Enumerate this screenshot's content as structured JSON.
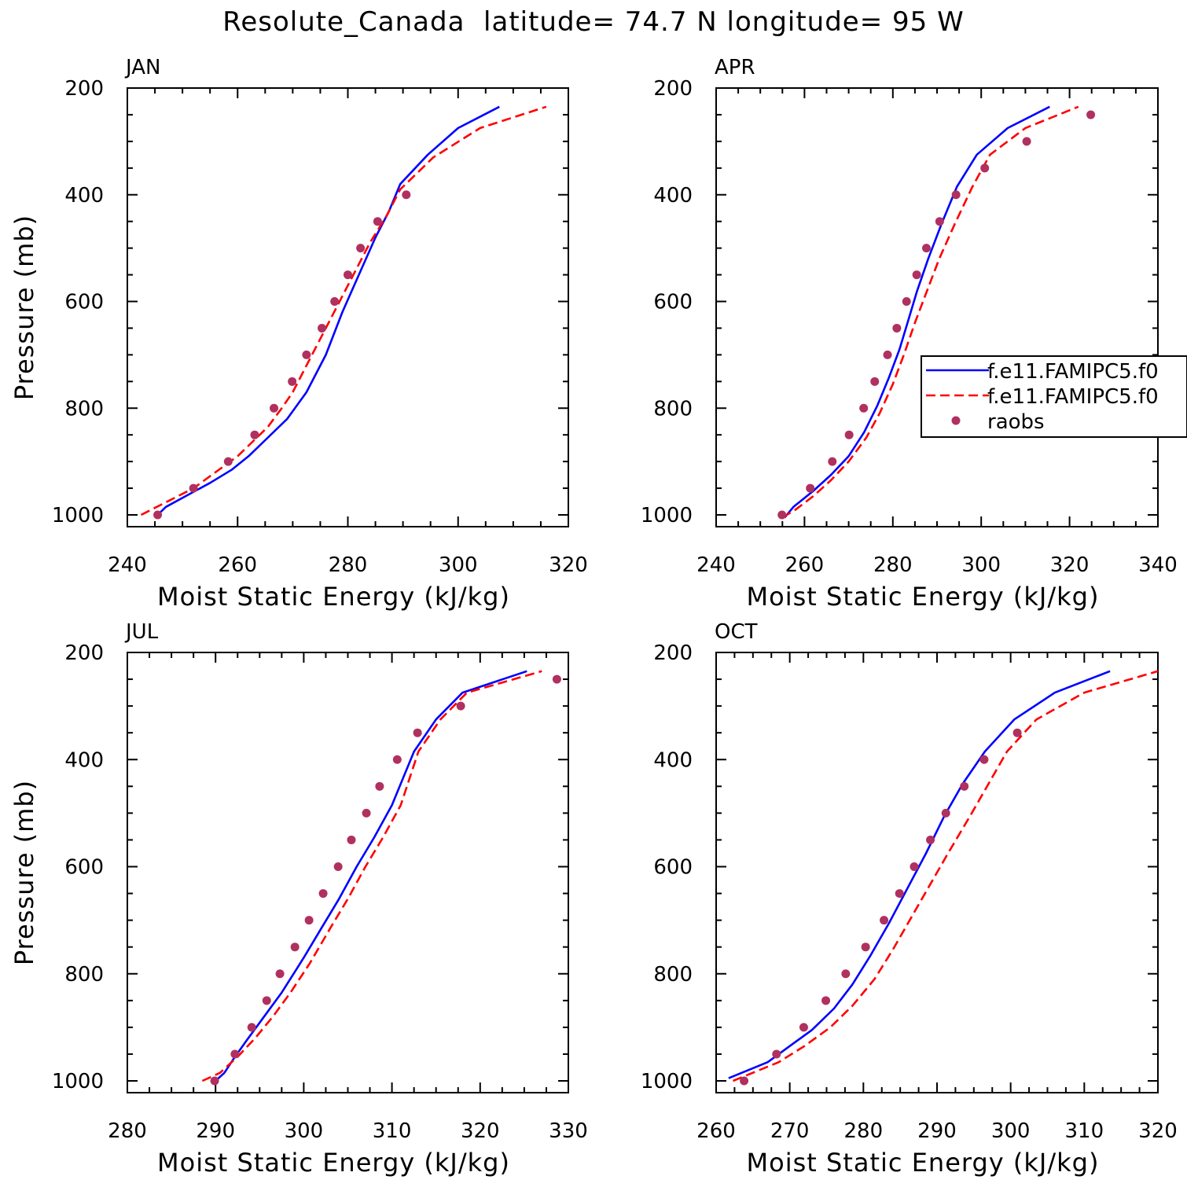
{
  "title": "Resolute_Canada  latitude= 74.7 N longitude= 95 W",
  "colors": {
    "model1": "#0000ff",
    "model2": "#ff0000",
    "raobs": "#b03060",
    "axis": "#000000"
  },
  "legend": {
    "panel": "APR",
    "entries": [
      {
        "label": "f.e11.FAMIPC5.f0",
        "style": "solid",
        "color": "#0000ff"
      },
      {
        "label": "f.e11.FAMIPC5.f0",
        "style": "dashed",
        "color": "#ff0000"
      },
      {
        "label": "raobs",
        "style": "marker",
        "color": "#b03060"
      }
    ]
  },
  "chart_data": [
    {
      "type": "line",
      "panel_label": "JAN",
      "xlabel": "Moist Static Energy (kJ/kg)",
      "ylabel": "Pressure (mb)",
      "xlim": [
        240,
        320
      ],
      "x_major": 20,
      "x_minor": 5,
      "ylim": [
        1000,
        200
      ],
      "y_major": 200,
      "y_minor": 50,
      "series": [
        {
          "key": "model1",
          "x": [
            245.5,
            247,
            255,
            259,
            262,
            265,
            269,
            272.5,
            276,
            279,
            282,
            285,
            287.5,
            289.5,
            294.5,
            300,
            307.5
          ],
          "y": [
            1000,
            985,
            940,
            915,
            890,
            860,
            820,
            770,
            700,
            620,
            550,
            480,
            430,
            380,
            325,
            275,
            235
          ]
        },
        {
          "key": "model2",
          "x": [
            242.5,
            252,
            256,
            260,
            263,
            265.5,
            268,
            270,
            272,
            274,
            276.5,
            278.5,
            281,
            284,
            287,
            289.5,
            295.5,
            304,
            316
          ],
          "y": [
            1000,
            950,
            920,
            890,
            860,
            835,
            800,
            770,
            730,
            690,
            640,
            600,
            550,
            490,
            440,
            390,
            330,
            275,
            235
          ]
        },
        {
          "key": "raobs",
          "x": [
            245.5,
            252,
            258.3,
            263.1,
            266.6,
            269.9,
            272.5,
            275.3,
            277.6,
            280,
            282.3,
            285.4,
            290.6
          ],
          "y": [
            1000,
            950,
            900,
            850,
            800,
            750,
            700,
            650,
            600,
            550,
            500,
            450,
            400
          ]
        }
      ]
    },
    {
      "type": "line",
      "panel_label": "APR",
      "xlabel": "Moist Static Energy (kJ/kg)",
      "ylabel": "",
      "xlim": [
        240,
        340
      ],
      "x_major": 20,
      "x_minor": 5,
      "ylim": [
        1000,
        200
      ],
      "y_major": 200,
      "y_minor": 50,
      "series": [
        {
          "key": "model1",
          "x": [
            255.5,
            257.5,
            262,
            266,
            270,
            273.5,
            276.5,
            279,
            281.5,
            283.5,
            285.5,
            288,
            291,
            294.5,
            299,
            306,
            315.5
          ],
          "y": [
            1005,
            985,
            955,
            925,
            890,
            845,
            795,
            745,
            690,
            635,
            580,
            520,
            455,
            385,
            325,
            275,
            235
          ]
        },
        {
          "key": "model2",
          "x": [
            255,
            258,
            262,
            266,
            270,
            274,
            277,
            280,
            282.5,
            285,
            287.5,
            290.5,
            294,
            298,
            302,
            310,
            322
          ],
          "y": [
            1005,
            990,
            965,
            935,
            900,
            855,
            810,
            755,
            700,
            640,
            585,
            520,
            455,
            385,
            325,
            275,
            235
          ]
        },
        {
          "key": "raobs",
          "x": [
            254.9,
            261.3,
            266.3,
            270.1,
            273.4,
            275.9,
            278.8,
            280.9,
            283.1,
            285.4,
            287.6,
            290.6,
            294.3,
            300.8,
            310.3,
            324.8
          ],
          "y": [
            1000,
            950,
            900,
            850,
            800,
            750,
            700,
            650,
            600,
            550,
            500,
            450,
            400,
            350,
            300,
            250
          ]
        }
      ]
    },
    {
      "type": "line",
      "panel_label": "JUL",
      "xlabel": "Moist Static Energy (kJ/kg)",
      "ylabel": "Pressure (mb)",
      "xlim": [
        280,
        330
      ],
      "x_major": 10,
      "x_minor": 2.5,
      "ylim": [
        1000,
        200
      ],
      "y_major": 200,
      "y_minor": 50,
      "series": [
        {
          "key": "model1",
          "x": [
            290,
            291,
            292,
            293.5,
            295.5,
            297.5,
            300,
            302,
            304,
            306,
            308,
            310,
            312.5,
            315,
            318,
            325.3
          ],
          "y": [
            1000,
            985,
            960,
            925,
            880,
            835,
            770,
            715,
            660,
            600,
            545,
            485,
            385,
            325,
            275,
            235
          ]
        },
        {
          "key": "model2",
          "x": [
            288.5,
            290.5,
            292.5,
            294.5,
            296.5,
            298.5,
            300.7,
            303,
            305,
            307,
            309,
            311,
            313,
            315.5,
            318.5,
            327
          ],
          "y": [
            1000,
            985,
            955,
            920,
            880,
            835,
            780,
            715,
            660,
            600,
            545,
            485,
            385,
            325,
            275,
            235
          ]
        },
        {
          "key": "raobs",
          "x": [
            289.9,
            292.2,
            294.1,
            295.8,
            297.3,
            299,
            300.6,
            302.2,
            303.9,
            305.4,
            307.1,
            308.6,
            310.6,
            312.9,
            317.8,
            328.7
          ],
          "y": [
            1000,
            950,
            900,
            850,
            800,
            750,
            700,
            650,
            600,
            550,
            500,
            450,
            400,
            350,
            300,
            250
          ]
        }
      ]
    },
    {
      "type": "line",
      "panel_label": "OCT",
      "xlabel": "Moist Static Energy (kJ/kg)",
      "ylabel": "",
      "xlim": [
        260,
        320
      ],
      "x_major": 10,
      "x_minor": 2.5,
      "ylim": [
        1000,
        200
      ],
      "y_major": 200,
      "y_minor": 50,
      "series": [
        {
          "key": "model1",
          "x": [
            261.7,
            267,
            270,
            273,
            276,
            278.5,
            281,
            283.5,
            286,
            288.5,
            291,
            293.5,
            296.5,
            300.5,
            306,
            313.5
          ],
          "y": [
            995,
            965,
            935,
            905,
            865,
            820,
            765,
            705,
            640,
            575,
            505,
            445,
            385,
            325,
            275,
            235
          ]
        },
        {
          "key": "model2",
          "x": [
            262.3,
            268.5,
            272,
            275.5,
            278.5,
            281.5,
            284,
            286.5,
            289,
            291.5,
            294.5,
            297,
            299.5,
            303.5,
            310,
            320
          ],
          "y": [
            1000,
            965,
            935,
            900,
            860,
            810,
            755,
            695,
            635,
            575,
            505,
            445,
            385,
            325,
            275,
            235
          ]
        },
        {
          "key": "raobs",
          "x": [
            263.8,
            268.2,
            271.9,
            274.9,
            277.6,
            280.3,
            282.8,
            284.9,
            286.9,
            289.1,
            291.2,
            293.7,
            296.4,
            300.9
          ],
          "y": [
            1000,
            950,
            900,
            850,
            800,
            750,
            700,
            650,
            600,
            550,
            500,
            450,
            400,
            350
          ]
        }
      ]
    }
  ]
}
